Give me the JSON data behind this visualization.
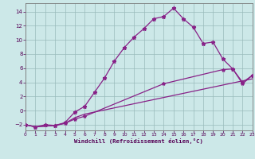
{
  "xlabel": "Windchill (Refroidissement éolien,°C)",
  "bg_color": "#cce8e8",
  "grid_color": "#99bbbb",
  "line_color": "#882288",
  "xlim": [
    0,
    23
  ],
  "ylim": [
    -2.8,
    15.2
  ],
  "xticks": [
    0,
    1,
    2,
    3,
    4,
    5,
    6,
    7,
    8,
    9,
    10,
    11,
    12,
    13,
    14,
    15,
    16,
    17,
    18,
    19,
    20,
    21,
    22,
    23
  ],
  "yticks": [
    -2,
    0,
    2,
    4,
    6,
    8,
    10,
    12,
    14
  ],
  "line1_x": [
    0,
    1,
    2,
    3,
    4,
    5,
    6,
    7,
    8,
    9,
    10,
    11,
    12,
    13,
    14,
    15,
    16,
    17,
    18,
    19,
    20,
    21,
    22,
    23
  ],
  "line1_y": [
    -2.0,
    -2.3,
    -2.0,
    -2.1,
    -1.7,
    -0.2,
    0.6,
    2.6,
    4.6,
    7.0,
    8.9,
    10.4,
    11.6,
    13.0,
    13.3,
    14.5,
    13.0,
    11.8,
    9.5,
    9.7,
    7.3,
    5.9,
    4.0,
    5.0
  ],
  "line2_x": [
    0,
    1,
    3,
    4,
    5,
    6,
    14,
    20,
    21,
    22,
    23
  ],
  "line2_y": [
    -2.0,
    -2.3,
    -2.1,
    -1.8,
    -1.2,
    -0.8,
    3.8,
    5.8,
    5.9,
    3.8,
    5.0
  ],
  "line3_x": [
    0,
    1,
    3,
    4,
    5,
    6,
    23
  ],
  "line3_y": [
    -2.0,
    -2.3,
    -2.1,
    -1.8,
    -1.0,
    -0.5,
    4.5
  ]
}
